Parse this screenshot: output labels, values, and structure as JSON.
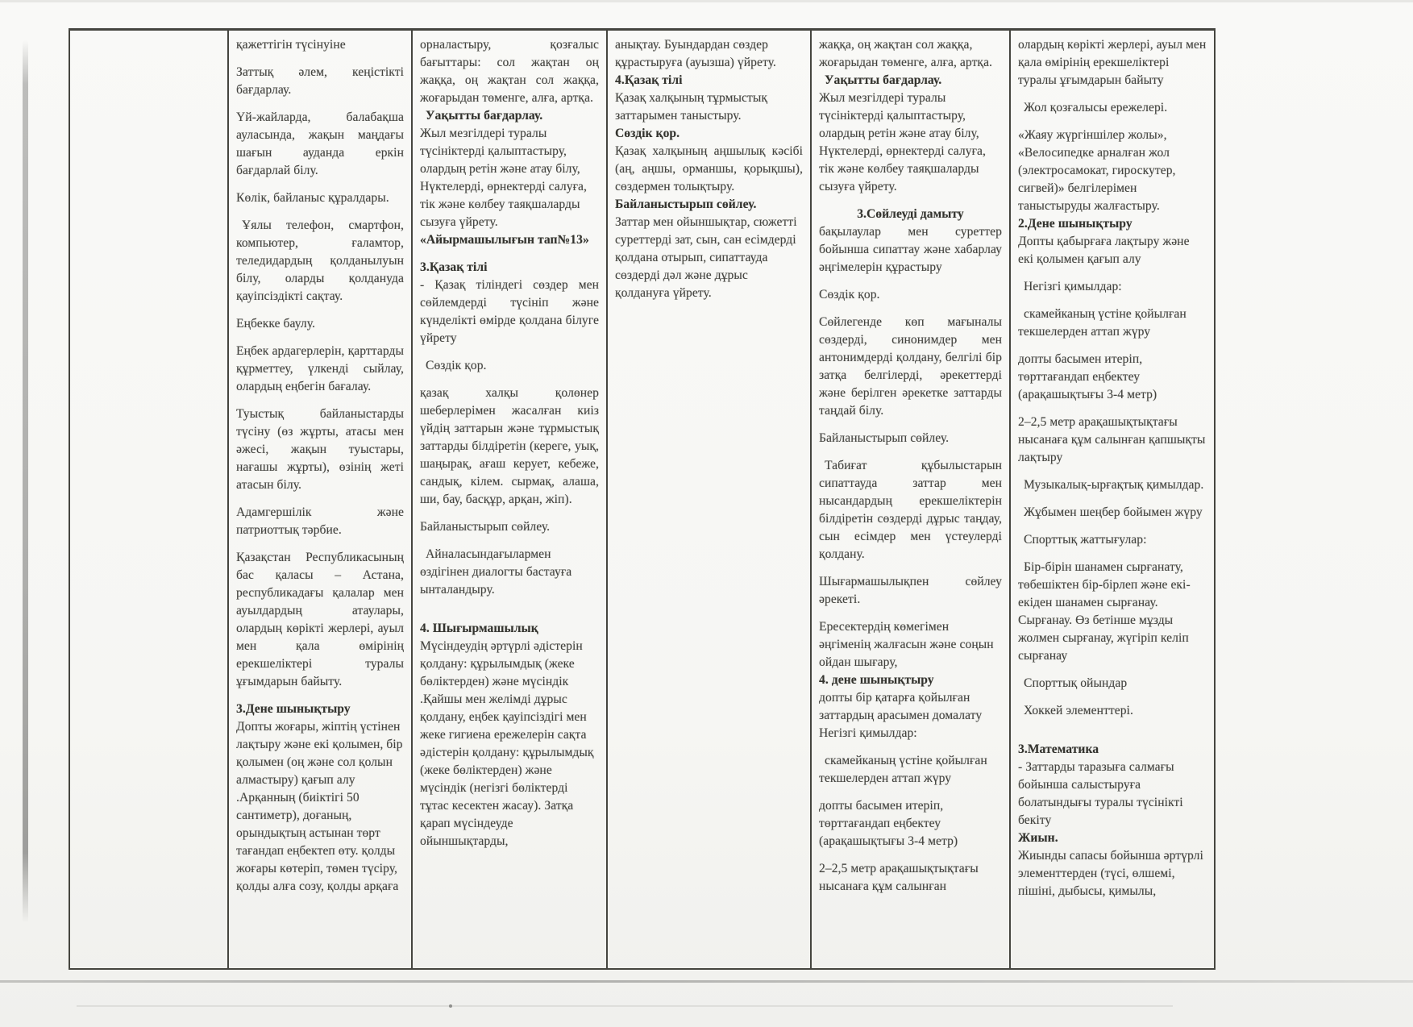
{
  "table": {
    "columns": [
      {
        "paragraphs": []
      },
      {
        "paragraphs": [
          {
            "t": "қажеттігін түсінуіне"
          },
          {
            "t": "Заттық әлем, кеңістікті бағдарлау.",
            "align": "justify"
          },
          {
            "t": "Үй-жайларда, балабақша ауласында, жақын маңдағы шағын ауданда еркін бағдарлай білу.",
            "align": "justify"
          },
          {
            "t": "Көлік, байланыс құралдары."
          },
          {
            "t": "Ұялы телефон, смартфон, компьютер, ғаламтор, теледидардың қолданылуын білу, оларды қолдануда қауіпсіздікті сақтау.",
            "align": "justify",
            "indent": true
          },
          {
            "t": "Еңбекке баулу."
          },
          {
            "t": "Еңбек ардагерлерін, қарттарды құрметтеу, үлкенді сыйлау, олардың еңбегін бағалау.",
            "align": "justify"
          },
          {
            "t": "Туыстық байланыстарды түсіну (өз жұрты, атасы мен әжесі, жақын туыстары, нағашы жұрты), өзінің жеті атасын білу.",
            "align": "justify"
          },
          {
            "t": "Адамгершілік және патриоттық тәрбие.",
            "align": "justify"
          },
          {
            "t": "Қазақстан Республикасының бас қаласы – Астана, республикадағы қалалар мен ауылдардың атаулары, олардың көрікті жерлері, ауыл мен қала өмірінің ерекшеліктері туралы ұғымдарын байыту.",
            "align": "justify"
          },
          {
            "t": "3.Дене шынықтыру",
            "bold": true,
            "tight": true
          },
          {
            "t": "Допты жоғары, жіптің үстінен лақтыру және екі қолымен, бір қолымен (оң және сол қолын алмастыру) қағып алу .Арқанның (биіктігі 50 сантиметр), доғаның, орындықтың астынан төрт тағандап еңбектеп өту. қолды жоғары көтеріп, төмен түсіру, қолды алға созу, қолды арқаға"
          }
        ]
      },
      {
        "paragraphs": [
          {
            "t": "орналастыру, қозғалыс бағыттары: сол жақтан оң жаққа, оң жақтан сол жаққа, жоғарыдан төменге, алға, артқа.",
            "align": "justify",
            "tight": true
          },
          {
            "t": "Уақытты бағдарлау.",
            "bold": true,
            "tight": true,
            "indent": true
          },
          {
            "t": "Жыл мезгілдері туралы түсініктерді қалыптастыру, олардың ретін және атау білу, Нүктелерді, өрнектерді салуға, тік және көлбеу таяқшаларды сызуға үйрету.",
            "tight": true
          },
          {
            "t": "«Айырмашылығын тап№13»",
            "bold": true
          },
          {
            "t": "3.Қазақ тілі",
            "bold": true,
            "tight": true
          },
          {
            "t": "- Қазақ тіліндегі сөздер мен сөйлемдерді түсініп және күнделікті өмірде қолдана білуге үйрету",
            "align": "justify"
          },
          {
            "t": "Сөздік қор.",
            "indent": true
          },
          {
            "t": "қазақ халқы қолөнер шеберлерімен жасалған киіз үйдің заттарын және тұрмыстық заттарды білдіретін (кереге, уық, шаңырақ, ағаш керует, кебеже, сандық, кілем. сырмақ, алаша, ши, бау, басқұр, арқан, жіп).",
            "align": "justify"
          },
          {
            "t": "Байланыстырып сөйлеу."
          },
          {
            "t": "Айналасындағылармен өздігінен диалогты бастауға ынталандыру.",
            "indent": true
          },
          {
            "t": "4. Шығырмашылық",
            "bold": true,
            "tight": true,
            "space_before": true
          },
          {
            "t": "Мүсіндеудің әртүрлі әдістерін қолдану: құрылымдық (жеке бөліктерден) және мүсіндік .Қайшы мен желімді дұрыс қолдану, еңбек қауіпсіздігі мен жеке гигиена ережелерін сақта әдістерін қолдану: құрылымдық (жеке бөліктерден) және мүсіндік (негізгі бөліктерді тұтас кесектен жасау). Затқа қарап мүсіндеуде ойыншықтарды,"
          }
        ]
      },
      {
        "paragraphs": [
          {
            "t": "анықтау. Буындардан сөздер құрастыруға (ауызша) үйрету.",
            "tight": true
          },
          {
            "t": "4.Қазақ тілі",
            "bold": true,
            "tight": true
          },
          {
            "t": "Қазақ халқының тұрмыстық заттарымен таныстыру.",
            "tight": true
          },
          {
            "t": "Сөздік қор.",
            "bold": true,
            "tight": true
          },
          {
            "t": "Қазақ халқының аңшылық кәсібі (аң, аңшы, орманшы, қорықшы), сөздермен толықтыру.",
            "align": "justify",
            "tight": true
          },
          {
            "t": "Байланыстырып сөйлеу.",
            "bold": true,
            "tight": true
          },
          {
            "t": "Заттар мен ойыншықтар, сюжетті суреттерді зат, сын, сан есімдерді қолдана отырып, сипаттауда сөздерді дәл және дұрыс қолдануға үйрету."
          }
        ]
      },
      {
        "paragraphs": [
          {
            "t": "жаққа, оң жақтан сол жаққа, жоғарыдан төменге, алға, артқа.",
            "tight": true
          },
          {
            "t": "Уақытты бағдарлау.",
            "bold": true,
            "tight": true,
            "indent": true
          },
          {
            "t": "Жыл мезгілдері туралы түсініктерді қалыптастыру, олардың ретін және атау білу, Нүктелерді, өрнектерді салуға, тік және көлбеу таяқшаларды сызуға үйрету."
          },
          {
            "t": "3.Сөйлеуді дамыту",
            "bold": true,
            "align": "center",
            "tight": true
          },
          {
            "t": "бақылаулар мен суреттер бойынша сипаттау және хабарлау әңгімелерін құрастыру",
            "align": "justify"
          },
          {
            "t": "Сөздік қор."
          },
          {
            "t": "Сөйлегенде көп мағыналы сөздерді, синонимдер мен антонимдерді қолдану, белгілі бір затқа белгілерді, әрекеттерді және берілген әрекетке заттарды таңдай білу.",
            "align": "justify"
          },
          {
            "t": "Байланыстырып сөйлеу."
          },
          {
            "t": "Табиғат құбылыстарын сипаттауда заттар мен нысандардың ерекшеліктерін білдіретін сөздерді дұрыс таңдау, сын есімдер мен үстеулерді қолдану.",
            "align": "justify",
            "indent": true
          },
          {
            "t": "Шығармашылықпен сөйлеу әрекеті.",
            "align": "justify"
          },
          {
            "t": "Ересектердің көмегімен әңгіменің жалғасын және соңын ойдан шығару,",
            "tight": true
          },
          {
            "t": "4. дене шынықтыру",
            "bold": true,
            "tight": true
          },
          {
            "t": "допты бір қатарға қойылған заттардың арасымен домалату Негізгі қимылдар:"
          },
          {
            "t": "скамейканың үстіне қойылған текшелерден аттап жүру",
            "indent": true
          },
          {
            "t": "допты басымен итеріп, төрттағандап еңбектеу (арақашықтығы 3-4 метр)"
          },
          {
            "t": "2–2,5 метр арақашықтықтағы нысанаға құм салынған"
          }
        ]
      },
      {
        "paragraphs": [
          {
            "t": "олардың көрікті жерлері, ауыл мен қала өмірінің ерекшеліктері туралы ұғымдарын байыту"
          },
          {
            "t": "Жол қозғалысы ережелері.",
            "indent": true
          },
          {
            "t": "«Жаяу жүргіншілер жолы», «Велосипедке арналған жол (электросамокат, гироскутер, сигвей)» белгілерімен таныстыруды жалғастыру.",
            "tight": true
          },
          {
            "t": "2.Дене шынықтыру",
            "bold": true,
            "tight": true
          },
          {
            "t": "Допты қабырғаға лақтыру және екі қолымен қағып алу"
          },
          {
            "t": "Негізгі қимылдар:",
            "indent": true
          },
          {
            "t": "скамейканың үстіне қойылған текшелерден аттап жүру",
            "indent": true
          },
          {
            "t": "допты басымен итеріп, төрттағандап еңбектеу (арақашықтығы 3-4 метр)"
          },
          {
            "t": "2–2,5 метр арақашықтықтағы нысанаға құм салынған қапшықты лақтыру"
          },
          {
            "t": "Музыкалық-ырғақтық қимылдар.",
            "indent": true
          },
          {
            "t": "Жұбымен шеңбер бойымен жүру",
            "indent": true
          },
          {
            "t": "Спорттық жаттығулар:",
            "indent": true
          },
          {
            "t": "Бір-бірін шанамен сырғанату, төбешіктен бір-бірлеп және екі-екіден шанамен сырғанау. Сырғанау. Өз бетінше мұзды жолмен сырғанау, жүгіріп келіп сырғанау",
            "indent": true
          },
          {
            "t": "Спорттық ойындар",
            "indent": true
          },
          {
            "t": "Хоккей элементтері.",
            "indent": true
          },
          {
            "t": "3.Математика",
            "bold": true,
            "tight": true,
            "space_before": true
          },
          {
            "t": "- Заттарды таразыға салмағы бойынша салыстыруға болатындығы туралы түсінікті бекіту",
            "tight": true
          },
          {
            "t": "Жиын.",
            "bold": true,
            "tight": true
          },
          {
            "t": "Жиынды сапасы бойынша әртүрлі элементтерден (түсі, өлшемі, пішіні, дыбысы, қимылы,"
          }
        ]
      }
    ]
  }
}
